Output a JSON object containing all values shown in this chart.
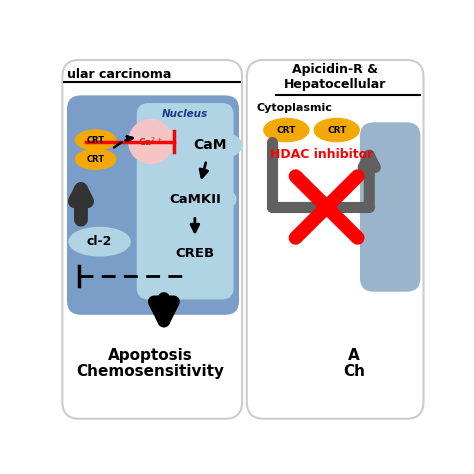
{
  "bg_color": "#ffffff",
  "panel1_title": "ular carcinoma",
  "panel2_title1": "Apicidin-R &",
  "panel2_title2": "Hepatocellular",
  "nucleus_label": "Nucleus",
  "cytoplasmic_label": "Cytoplasmic",
  "cam_label": "CaM",
  "camkii_label": "CaMKII",
  "creb_label": "CREB",
  "bcl2_label": "cl-2",
  "crt_label": "CRT",
  "hdac_label": "HDAC inhibitor",
  "apoptosis_label": "Apoptosis\nChemosensitivity",
  "ap2_label": "A\nCh",
  "cell_blue": "#7b9ec9",
  "nucleus_blue": "#b0d4e4",
  "nucleus2_blue": "#9ab4cc",
  "crt_gold": "#f5a800",
  "ca_pink": "#f5c5c5",
  "ca_edge": "#e09090",
  "arrow_gray": "#606060",
  "panel_edge": "#cccccc"
}
